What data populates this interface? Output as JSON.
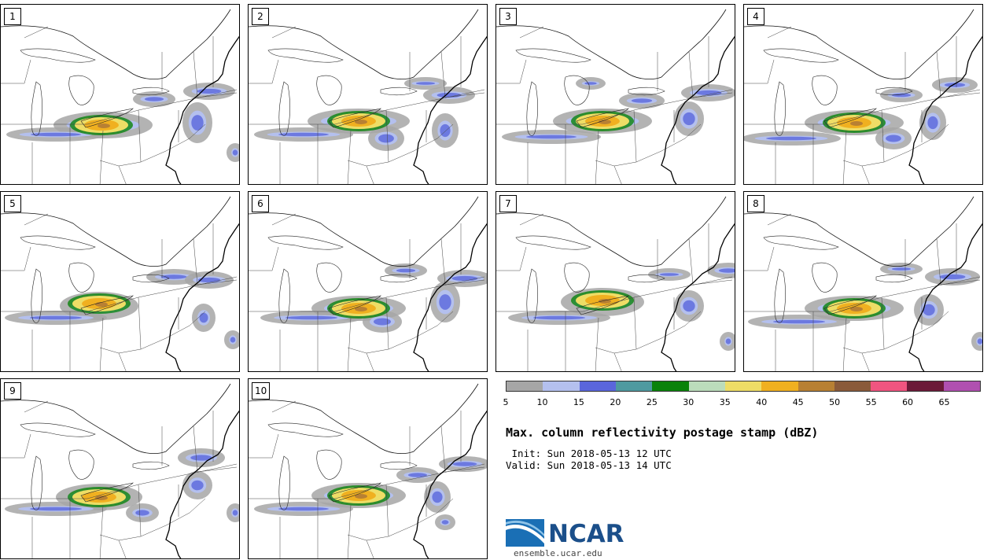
{
  "panels": [
    {
      "label": "1"
    },
    {
      "label": "2"
    },
    {
      "label": "3"
    },
    {
      "label": "4"
    },
    {
      "label": "5"
    },
    {
      "label": "6"
    },
    {
      "label": "7"
    },
    {
      "label": "8"
    },
    {
      "label": "9"
    },
    {
      "label": "10"
    }
  ],
  "colorbar": {
    "colors": [
      "#a6a6a6",
      "#b4c0ee",
      "#5a66dc",
      "#4f9aa0",
      "#0a820a",
      "#bbdcbb",
      "#eedd66",
      "#f0b020",
      "#b88033",
      "#8a5a3a",
      "#f05580",
      "#6b1a38",
      "#b050b0"
    ],
    "ticks": [
      "5",
      "10",
      "15",
      "20",
      "25",
      "30",
      "35",
      "40",
      "45",
      "50",
      "55",
      "60",
      "65"
    ]
  },
  "title": "Max. column reflectivity postage stamp (dBZ)",
  "init": " Init: Sun 2018-05-13 12 UTC",
  "valid": "Valid: Sun 2018-05-13 14 UTC",
  "logo": {
    "text": "NCAR",
    "site": "ensemble.ucar.edu"
  }
}
